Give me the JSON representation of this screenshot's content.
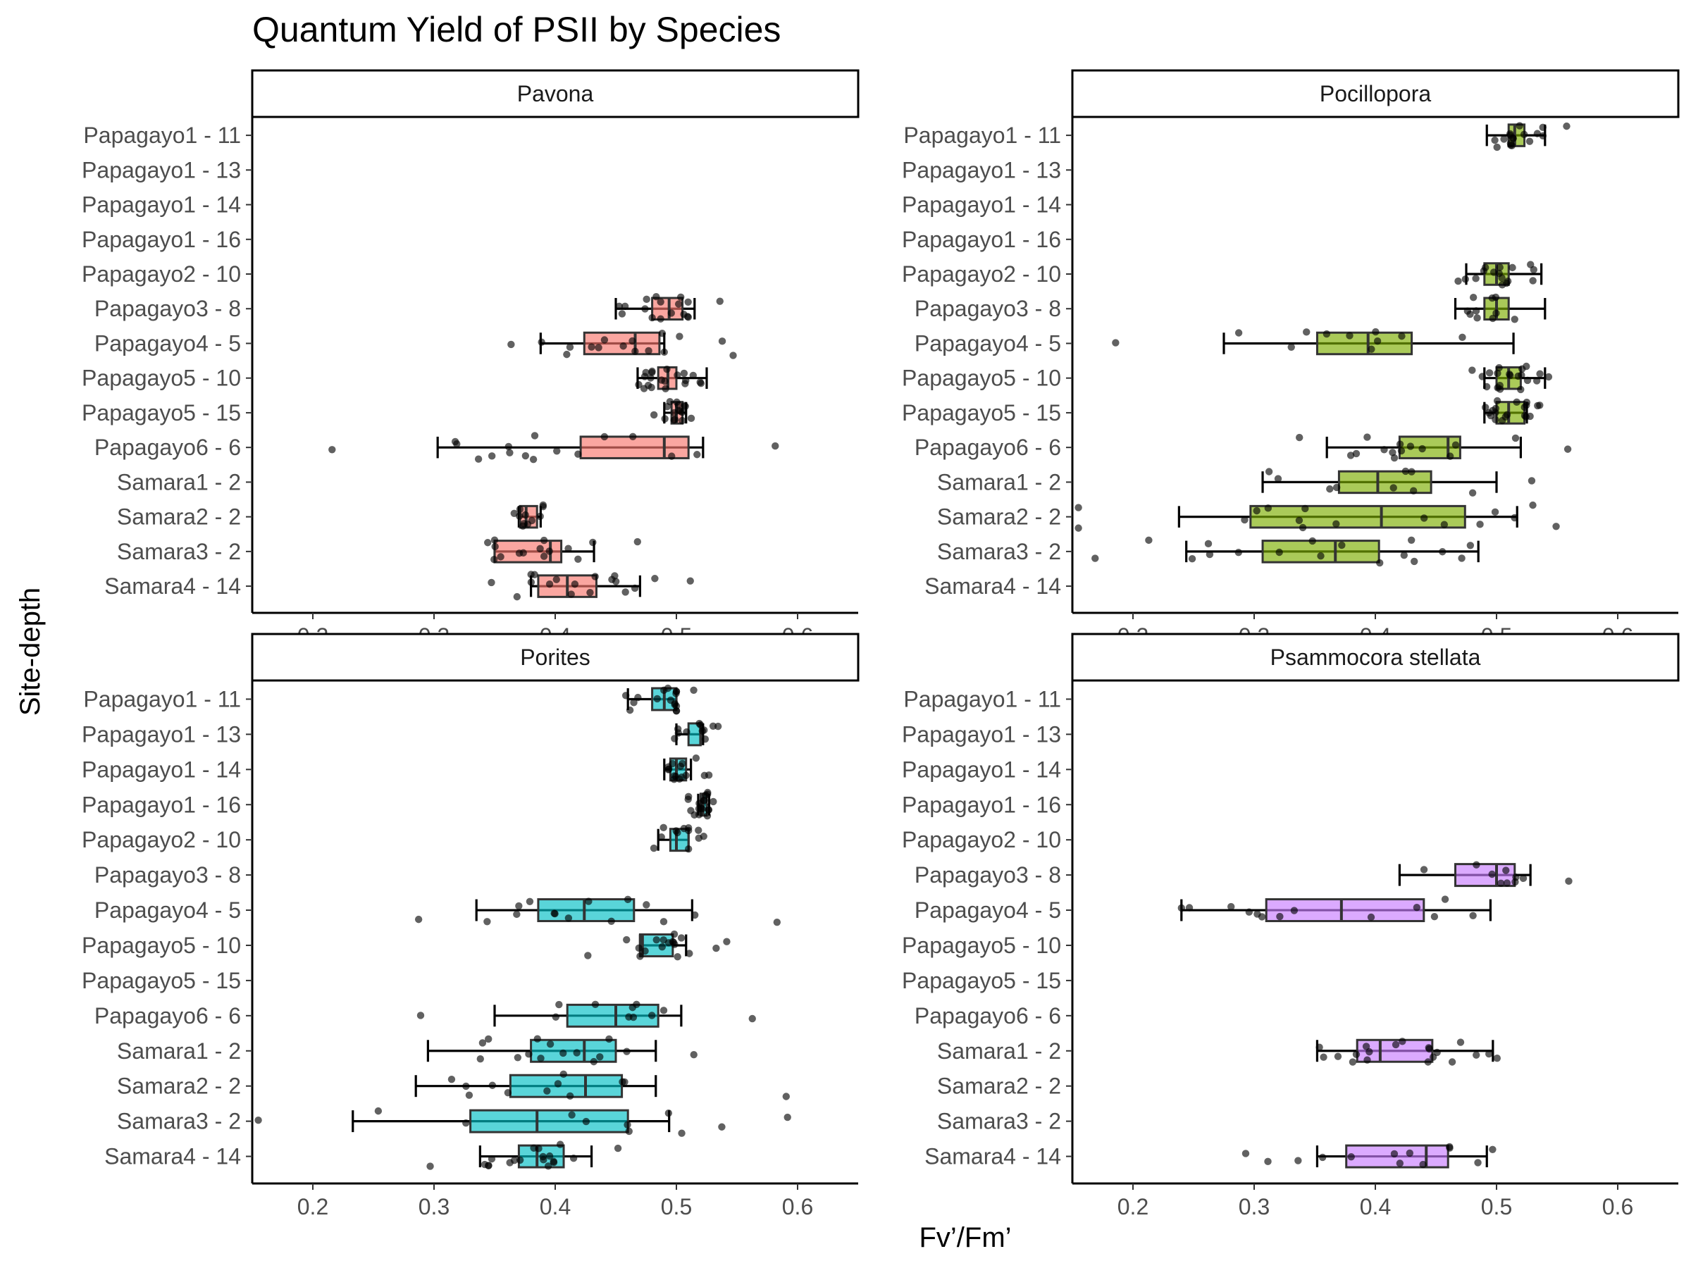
{
  "chart_data": {
    "type": "boxplot",
    "title": "Quantum Yield of PSII by Species",
    "xlabel": "Fv’/Fm’",
    "ylabel": "Site-depth",
    "xlim": [
      0.15,
      0.65
    ],
    "xticks": [
      0.2,
      0.3,
      0.4,
      0.5,
      0.6
    ],
    "xtick_labels": [
      "0.2",
      "0.3",
      "0.4",
      "0.5",
      "0.6"
    ],
    "categories": [
      "Papagayo1 - 11",
      "Papagayo1 - 13",
      "Papagayo1 - 14",
      "Papagayo1 - 16",
      "Papagayo2 - 10",
      "Papagayo3 - 8",
      "Papagayo4 - 5",
      "Papagayo5 - 10",
      "Papagayo5 - 15",
      "Papagayo6 - 6",
      "Samara1 - 2",
      "Samara2 - 2",
      "Samara3 - 2",
      "Samara4 - 14"
    ],
    "panels": [
      {
        "name": "Pavona",
        "color": "#F8766D",
        "boxes": [
          {
            "category": "Papagayo3 - 8",
            "whisker_low": 0.45,
            "q1": 0.48,
            "median": 0.494,
            "q3": 0.505,
            "whisker_high": 0.515
          },
          {
            "category": "Papagayo4 - 5",
            "whisker_low": 0.388,
            "q1": 0.424,
            "median": 0.466,
            "q3": 0.486,
            "whisker_high": 0.49
          },
          {
            "category": "Papagayo5 - 10",
            "whisker_low": 0.468,
            "q1": 0.485,
            "median": 0.493,
            "q3": 0.5,
            "whisker_high": 0.525
          },
          {
            "category": "Papagayo5 - 15",
            "whisker_low": 0.49,
            "q1": 0.496,
            "median": 0.5,
            "q3": 0.505,
            "whisker_high": 0.508
          },
          {
            "category": "Papagayo6 - 6",
            "whisker_low": 0.303,
            "q1": 0.421,
            "median": 0.49,
            "q3": 0.51,
            "whisker_high": 0.522
          },
          {
            "category": "Samara2 - 2",
            "whisker_low": 0.37,
            "q1": 0.371,
            "median": 0.376,
            "q3": 0.385,
            "whisker_high": 0.388
          },
          {
            "category": "Samara3 - 2",
            "whisker_low": 0.35,
            "q1": 0.35,
            "median": 0.396,
            "q3": 0.405,
            "whisker_high": 0.432
          },
          {
            "category": "Samara4 - 14",
            "whisker_low": 0.38,
            "q1": 0.386,
            "median": 0.41,
            "q3": 0.434,
            "whisker_high": 0.47
          }
        ]
      },
      {
        "name": "Pocillopora",
        "color": "#7CAE00",
        "boxes": [
          {
            "category": "Papagayo1 - 11",
            "whisker_low": 0.492,
            "q1": 0.51,
            "median": 0.515,
            "q3": 0.523,
            "whisker_high": 0.54
          },
          {
            "category": "Papagayo2 - 10",
            "whisker_low": 0.475,
            "q1": 0.49,
            "median": 0.5,
            "q3": 0.51,
            "whisker_high": 0.537
          },
          {
            "category": "Papagayo3 - 8",
            "whisker_low": 0.466,
            "q1": 0.49,
            "median": 0.5,
            "q3": 0.51,
            "whisker_high": 0.54
          },
          {
            "category": "Papagayo4 - 5",
            "whisker_low": 0.275,
            "q1": 0.352,
            "median": 0.394,
            "q3": 0.43,
            "whisker_high": 0.514
          },
          {
            "category": "Papagayo5 - 10",
            "whisker_low": 0.49,
            "q1": 0.5,
            "median": 0.51,
            "q3": 0.52,
            "whisker_high": 0.54
          },
          {
            "category": "Papagayo5 - 15",
            "whisker_low": 0.49,
            "q1": 0.5,
            "median": 0.51,
            "q3": 0.523,
            "whisker_high": 0.525
          },
          {
            "category": "Papagayo6 - 6",
            "whisker_low": 0.36,
            "q1": 0.42,
            "median": 0.46,
            "q3": 0.47,
            "whisker_high": 0.52
          },
          {
            "category": "Samara1 - 2",
            "whisker_low": 0.307,
            "q1": 0.37,
            "median": 0.402,
            "q3": 0.446,
            "whisker_high": 0.5
          },
          {
            "category": "Samara2 - 2",
            "whisker_low": 0.238,
            "q1": 0.297,
            "median": 0.405,
            "q3": 0.474,
            "whisker_high": 0.517
          },
          {
            "category": "Samara3 - 2",
            "whisker_low": 0.244,
            "q1": 0.307,
            "median": 0.367,
            "q3": 0.403,
            "whisker_high": 0.485
          }
        ]
      },
      {
        "name": "Porites",
        "color": "#00BFC4",
        "boxes": [
          {
            "category": "Papagayo1 - 11",
            "whisker_low": 0.46,
            "q1": 0.48,
            "median": 0.49,
            "q3": 0.5,
            "whisker_high": 0.5
          },
          {
            "category": "Papagayo1 - 13",
            "whisker_low": 0.5,
            "q1": 0.51,
            "median": 0.52,
            "q3": 0.52,
            "whisker_high": 0.522
          },
          {
            "category": "Papagayo1 - 14",
            "whisker_low": 0.49,
            "q1": 0.495,
            "median": 0.5,
            "q3": 0.508,
            "whisker_high": 0.512
          },
          {
            "category": "Papagayo1 - 16",
            "whisker_low": 0.518,
            "q1": 0.52,
            "median": 0.522,
            "q3": 0.525,
            "whisker_high": 0.527
          },
          {
            "category": "Papagayo2 - 10",
            "whisker_low": 0.485,
            "q1": 0.495,
            "median": 0.5,
            "q3": 0.51,
            "whisker_high": 0.51
          },
          {
            "category": "Papagayo4 - 5",
            "whisker_low": 0.335,
            "q1": 0.386,
            "median": 0.424,
            "q3": 0.465,
            "whisker_high": 0.513
          },
          {
            "category": "Papagayo5 - 10",
            "whisker_low": 0.47,
            "q1": 0.47,
            "median": 0.472,
            "q3": 0.497,
            "whisker_high": 0.508
          },
          {
            "category": "Papagayo6 - 6",
            "whisker_low": 0.35,
            "q1": 0.41,
            "median": 0.45,
            "q3": 0.485,
            "whisker_high": 0.504
          },
          {
            "category": "Samara1 - 2",
            "whisker_low": 0.295,
            "q1": 0.38,
            "median": 0.424,
            "q3": 0.45,
            "whisker_high": 0.483
          },
          {
            "category": "Samara2 - 2",
            "whisker_low": 0.285,
            "q1": 0.363,
            "median": 0.425,
            "q3": 0.455,
            "whisker_high": 0.483
          },
          {
            "category": "Samara3 - 2",
            "whisker_low": 0.233,
            "q1": 0.33,
            "median": 0.385,
            "q3": 0.46,
            "whisker_high": 0.494
          },
          {
            "category": "Samara4 - 14",
            "whisker_low": 0.338,
            "q1": 0.37,
            "median": 0.385,
            "q3": 0.407,
            "whisker_high": 0.43
          }
        ]
      },
      {
        "name": "Psammocora stellata",
        "color": "#C77CFF",
        "boxes": [
          {
            "category": "Papagayo3 - 8",
            "whisker_low": 0.42,
            "q1": 0.466,
            "median": 0.5,
            "q3": 0.515,
            "whisker_high": 0.528
          },
          {
            "category": "Papagayo4 - 5",
            "whisker_low": 0.24,
            "q1": 0.31,
            "median": 0.372,
            "q3": 0.44,
            "whisker_high": 0.495
          },
          {
            "category": "Samara1 - 2",
            "whisker_low": 0.352,
            "q1": 0.385,
            "median": 0.404,
            "q3": 0.447,
            "whisker_high": 0.497
          },
          {
            "category": "Samara4 - 14",
            "whisker_low": 0.352,
            "q1": 0.376,
            "median": 0.442,
            "q3": 0.46,
            "whisker_high": 0.492
          }
        ]
      }
    ]
  }
}
